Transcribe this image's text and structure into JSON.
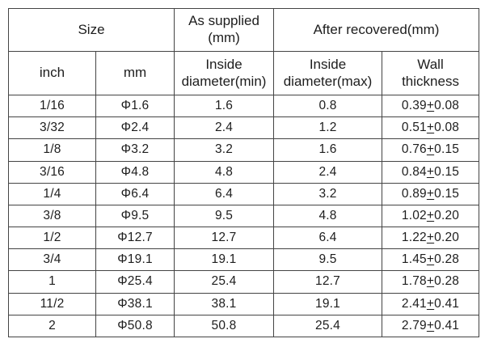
{
  "chart_data": {
    "type": "table",
    "header": {
      "size": "Size",
      "as_supplied": "As supplied\n(mm)",
      "after_recovered": "After recovered(mm)",
      "inch": "inch",
      "mm": "mm",
      "inside_diameter_min": "Inside\ndiameter(min)",
      "inside_diameter_max": "Inside\ndiameter(max)",
      "wall_thickness": "Wall\nthickness"
    },
    "columns": [
      "inch",
      "mm",
      "Inside diameter(min)",
      "Inside diameter(max)",
      "Wall thickness"
    ],
    "rows": [
      [
        "1/16",
        "Φ1.6",
        "1.6",
        "0.8",
        "0.39+0.08"
      ],
      [
        "3/32",
        "Φ2.4",
        "2.4",
        "1.2",
        "0.51+0.08"
      ],
      [
        "1/8",
        "Φ3.2",
        "3.2",
        "1.6",
        "0.76+0.15"
      ],
      [
        "3/16",
        "Φ4.8",
        "4.8",
        "2.4",
        "0.84+0.15"
      ],
      [
        "1/4",
        "Φ6.4",
        "6.4",
        "3.2",
        "0.89+0.15"
      ],
      [
        "3/8",
        "Φ9.5",
        "9.5",
        "4.8",
        "1.02+0.20"
      ],
      [
        "1/2",
        "Φ12.7",
        "12.7",
        "6.4",
        "1.22+0.20"
      ],
      [
        "3/4",
        "Φ19.1",
        "19.1",
        "9.5",
        "1.45+0.28"
      ],
      [
        "1",
        "Φ25.4",
        "25.4",
        "12.7",
        "1.78+0.28"
      ],
      [
        "11/2",
        "Φ38.1",
        "38.1",
        "19.1",
        "2.41+0.41"
      ],
      [
        "2",
        "Φ50.8",
        "50.8",
        "25.4",
        "2.79+0.41"
      ]
    ],
    "colors": {
      "border": "#444444",
      "text": "#1d1d1d",
      "background": "#ffffff"
    }
  }
}
